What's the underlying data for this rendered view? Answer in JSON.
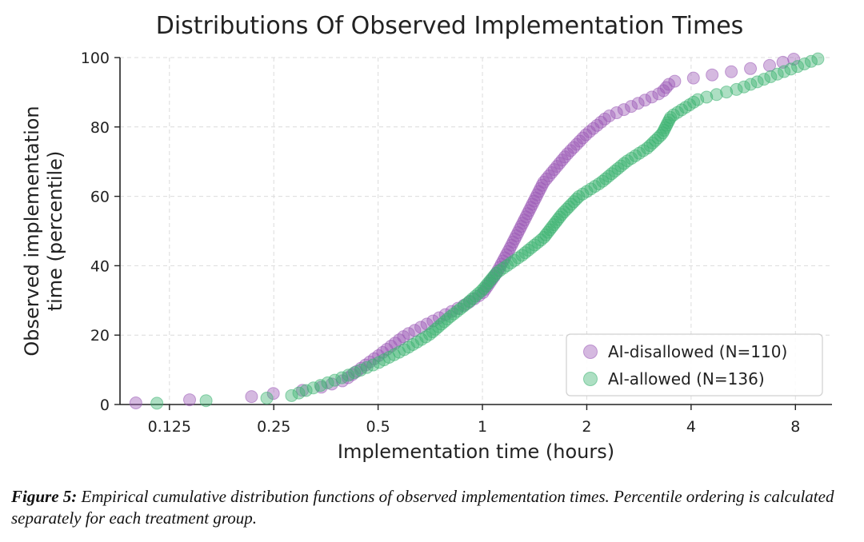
{
  "chart_data": {
    "type": "scatter",
    "title": "Distributions Of Observed Implementation Times",
    "xlabel": "Implementation time (hours)",
    "ylabel_line1": "Observed implementation",
    "ylabel_line2": "time (percentile)",
    "x_scale": "log2",
    "xlim": [
      0.09,
      10.2
    ],
    "ylim": [
      0,
      100
    ],
    "xticks": [
      0.125,
      0.25,
      0.5,
      1,
      2,
      4,
      8
    ],
    "xtick_labels": [
      "0.125",
      "0.25",
      "0.5",
      "1",
      "2",
      "4",
      "8"
    ],
    "yticks": [
      0,
      20,
      40,
      60,
      80,
      100
    ],
    "ytick_labels": [
      "0",
      "20",
      "40",
      "60",
      "80",
      "100"
    ],
    "grid": true,
    "legend_position": "lower-right",
    "series": [
      {
        "name": "AI-disallowed (N=110)",
        "color": "#9b59b6",
        "anchors": [
          [
            0.1,
            0.9
          ],
          [
            0.2,
            1.8
          ],
          [
            0.25,
            3.2
          ],
          [
            0.33,
            4.5
          ],
          [
            0.4,
            7.0
          ],
          [
            0.5,
            14.0
          ],
          [
            0.6,
            20.0
          ],
          [
            0.75,
            25.0
          ],
          [
            0.9,
            29.0
          ],
          [
            1.0,
            32.0
          ],
          [
            1.1,
            38.0
          ],
          [
            1.2,
            45.0
          ],
          [
            1.35,
            55.0
          ],
          [
            1.5,
            64.0
          ],
          [
            1.75,
            72.0
          ],
          [
            2.0,
            78.0
          ],
          [
            2.3,
            83.0
          ],
          [
            2.7,
            86.0
          ],
          [
            3.3,
            90.0
          ],
          [
            3.5,
            93.0
          ],
          [
            4.6,
            95.0
          ],
          [
            7.0,
            98.0
          ],
          [
            8.2,
            100.0
          ]
        ]
      },
      {
        "name": "AI-allowed (N=136)",
        "color": "#3cb371",
        "anchors": [
          [
            0.115,
            0.7
          ],
          [
            0.22,
            1.5
          ],
          [
            0.28,
            2.5
          ],
          [
            0.33,
            5.0
          ],
          [
            0.4,
            8.0
          ],
          [
            0.5,
            12.0
          ],
          [
            0.6,
            16.0
          ],
          [
            0.7,
            20.0
          ],
          [
            0.8,
            25.0
          ],
          [
            0.9,
            29.0
          ],
          [
            1.0,
            33.0
          ],
          [
            1.1,
            38.0
          ],
          [
            1.3,
            43.0
          ],
          [
            1.5,
            48.0
          ],
          [
            1.7,
            55.0
          ],
          [
            1.9,
            60.0
          ],
          [
            2.2,
            64.0
          ],
          [
            2.6,
            70.0
          ],
          [
            3.0,
            74.0
          ],
          [
            3.3,
            78.0
          ],
          [
            3.5,
            83.0
          ],
          [
            4.2,
            88.0
          ],
          [
            5.5,
            91.0
          ],
          [
            7.0,
            95.0
          ],
          [
            9.5,
            100.0
          ]
        ]
      }
    ]
  },
  "caption": {
    "label": "Figure 5:",
    "text": " Empirical cumulative distribution functions of observed implementation times. Percentile ordering is calculated separately for each treatment group."
  }
}
